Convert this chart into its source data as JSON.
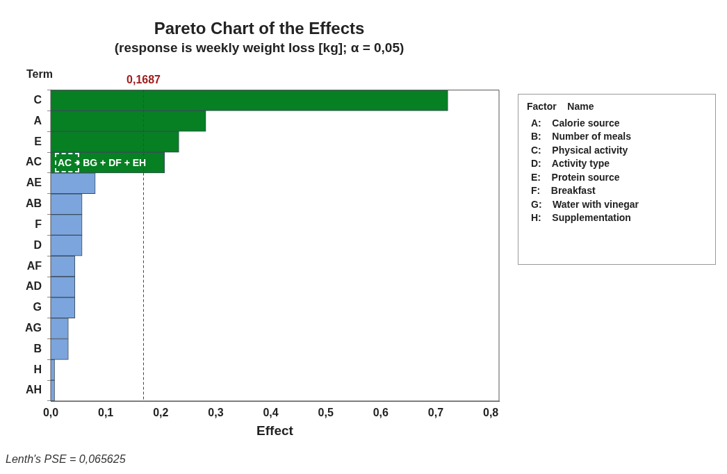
{
  "chart_data": {
    "type": "bar",
    "orientation": "horizontal",
    "title": "Pareto Chart of the Effects",
    "subtitle": "(response is weekly weight loss [kg]; α = 0,05)",
    "ylabel": "Term",
    "xlabel": "Effect",
    "categories": [
      "C",
      "A",
      "E",
      "AC",
      "AE",
      "AB",
      "F",
      "D",
      "AF",
      "AD",
      "G",
      "AG",
      "B",
      "H",
      "AH"
    ],
    "values": [
      0.722,
      0.282,
      0.233,
      0.207,
      0.081,
      0.057,
      0.057,
      0.057,
      0.044,
      0.044,
      0.044,
      0.032,
      0.032,
      0.007,
      0.007
    ],
    "colors": [
      "#077f23",
      "#077f23",
      "#077f23",
      "#077f23",
      "#7ba5dc",
      "#7ba5dc",
      "#7ba5dc",
      "#7ba5dc",
      "#7ba5dc",
      "#7ba5dc",
      "#7ba5dc",
      "#7ba5dc",
      "#7ba5dc",
      "#7ba5dc",
      "#7ba5dc"
    ],
    "xlim": [
      0,
      0.815
    ],
    "xticks": [
      {
        "value": 0,
        "label": "0,0"
      },
      {
        "value": 0.1,
        "label": "0,1"
      },
      {
        "value": 0.2,
        "label": "0,2"
      },
      {
        "value": 0.3,
        "label": "0,3"
      },
      {
        "value": 0.4,
        "label": "0,4"
      },
      {
        "value": 0.5,
        "label": "0,5"
      },
      {
        "value": 0.6,
        "label": "0,6"
      },
      {
        "value": 0.7,
        "label": "0,7"
      },
      {
        "value": 0.8,
        "label": "0,8"
      }
    ],
    "ref_lines": [
      {
        "axis": "x",
        "value": 0.1687,
        "label": "0,1687",
        "color": "#a01c1c",
        "line_style": "dashed"
      }
    ],
    "annotations": [
      {
        "text": "AC + BG + DF + EH",
        "x": 0,
        "y": "AC"
      },
      "Lenth's PSE = 0,065625",
      "Factor    Name",
      "A:    Calorie source",
      "B:    Number of meals",
      "C:    Physical activity",
      "D:    Activity type",
      "E:    Protein source",
      "F:    Breakfast",
      "G:    Water with vinegar",
      "H:    Supplementation"
    ],
    "grid": false,
    "legend": false
  }
}
